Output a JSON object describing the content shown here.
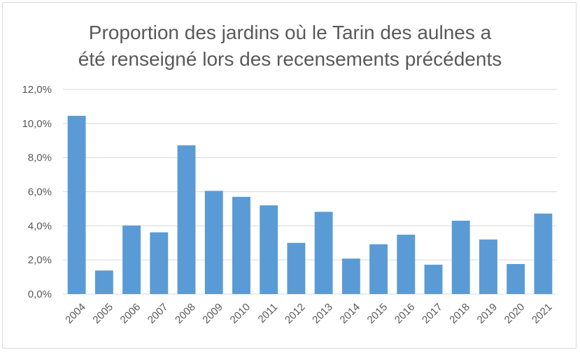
{
  "chart_data": {
    "type": "bar",
    "title_lines": [
      "Proportion des jardins où le Tarin des aulnes a",
      "été renseigné lors des recensements précédents"
    ],
    "categories": [
      "2004",
      "2005",
      "2006",
      "2007",
      "2008",
      "2009",
      "2010",
      "2011",
      "2012",
      "2013",
      "2014",
      "2015",
      "2016",
      "2017",
      "2018",
      "2019",
      "2020",
      "2021"
    ],
    "values": [
      10.45,
      1.38,
      4.02,
      3.62,
      8.72,
      6.05,
      5.7,
      5.2,
      3.0,
      4.82,
      2.08,
      2.92,
      3.48,
      1.72,
      4.3,
      3.2,
      1.76,
      4.72
    ],
    "ylim": [
      0,
      12
    ],
    "y_ticks": [
      "0,0%",
      "2,0%",
      "4,0%",
      "6,0%",
      "8,0%",
      "10,0%",
      "12,0%"
    ],
    "bar_color": "#5b9bd5",
    "grid": true,
    "legend": "none",
    "xlabel": "",
    "ylabel": ""
  }
}
